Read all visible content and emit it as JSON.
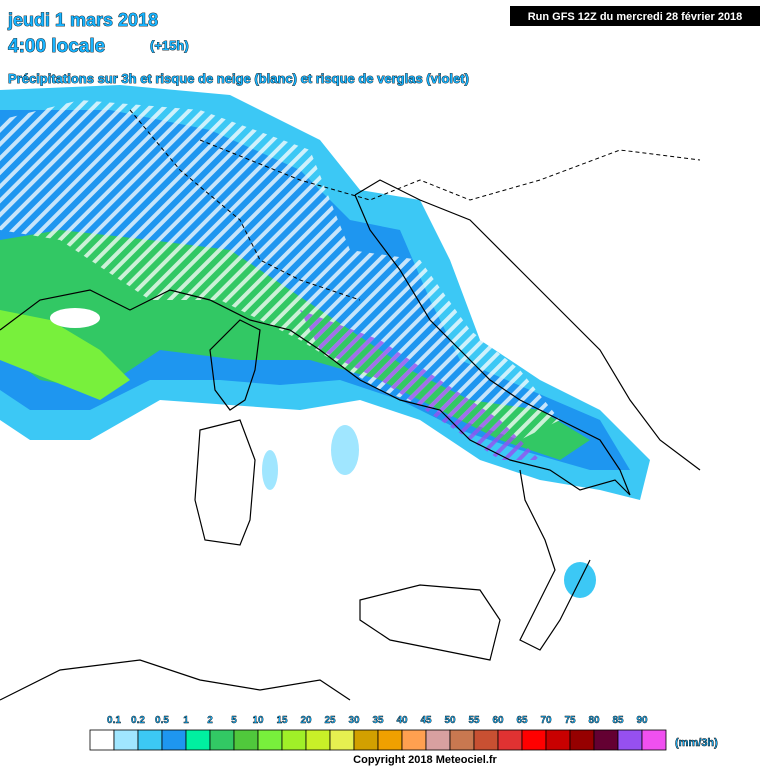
{
  "header": {
    "date": "jeudi 1 mars 2018",
    "time": "4:00 locale",
    "lead": "(+15h)",
    "subtitle": "Précipitations sur 3h et risque de neige (blanc) et risque de verglas (violet)",
    "run": "Run GFS 12Z du mercredi 28 février 2018"
  },
  "legend": {
    "labels": [
      "0.1",
      "0.2",
      "0.5",
      "1",
      "2",
      "5",
      "10",
      "15",
      "20",
      "25",
      "30",
      "35",
      "40",
      "45",
      "50",
      "55",
      "60",
      "65",
      "70",
      "75",
      "80",
      "85",
      "90"
    ],
    "colors": [
      "#ffffff",
      "#a0e6ff",
      "#3cc8f5",
      "#1e96f0",
      "#00f0a0",
      "#32c864",
      "#50c83c",
      "#78f03c",
      "#a0f028",
      "#c8f028",
      "#e6f050",
      "#d2a000",
      "#f0a000",
      "#ffa050",
      "#d8a0a0",
      "#c87850",
      "#c85032",
      "#e03232",
      "#ff0000",
      "#c80000",
      "#960000",
      "#640032",
      "#9650f0",
      "#f050f0"
    ],
    "unit": "(mm/3h)"
  },
  "footer": {
    "copyright": "Copyright 2018 Meteociel.fr"
  }
}
